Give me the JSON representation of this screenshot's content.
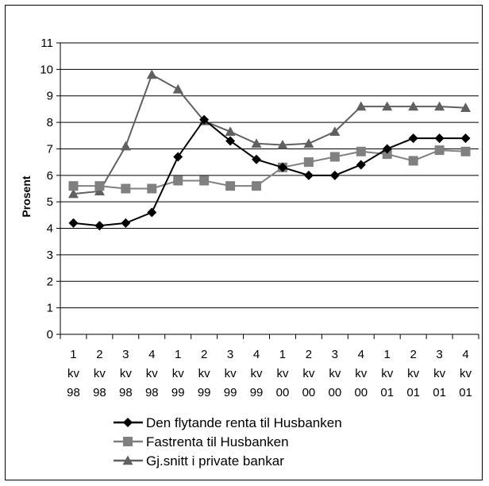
{
  "chart_data": {
    "type": "line",
    "title": "",
    "xlabel": "",
    "ylabel": "Prosent",
    "ylim": [
      0,
      11
    ],
    "yticks": [
      "0",
      "1",
      "2",
      "3",
      "4",
      "5",
      "6",
      "7",
      "8",
      "9",
      "10",
      "11"
    ],
    "grid": true,
    "legend_position": "bottom",
    "categories": [
      [
        "1",
        "kv",
        "98"
      ],
      [
        "2",
        "kv",
        "98"
      ],
      [
        "3",
        "kv",
        "98"
      ],
      [
        "4",
        "kv",
        "98"
      ],
      [
        "1",
        "kv",
        "99"
      ],
      [
        "2",
        "kv",
        "99"
      ],
      [
        "3",
        "kv",
        "99"
      ],
      [
        "4",
        "kv",
        "99"
      ],
      [
        "1",
        "kv",
        "00"
      ],
      [
        "2",
        "kv",
        "00"
      ],
      [
        "3",
        "kv",
        "00"
      ],
      [
        "4",
        "kv",
        "00"
      ],
      [
        "1",
        "kv",
        "01"
      ],
      [
        "2",
        "kv",
        "01"
      ],
      [
        "3",
        "kv",
        "01"
      ],
      [
        "4",
        "kv",
        "01"
      ]
    ],
    "series": [
      {
        "name": "Den flytande renta til Husbanken",
        "marker": "diamond",
        "color": "#000000",
        "values": [
          4.2,
          4.1,
          4.2,
          4.6,
          6.7,
          8.1,
          7.3,
          6.6,
          6.3,
          6.0,
          6.0,
          6.4,
          7.0,
          7.4,
          7.4,
          7.4
        ]
      },
      {
        "name": "Fastrenta til Husbanken",
        "marker": "square",
        "color": "#808080",
        "values": [
          5.6,
          5.6,
          5.5,
          5.5,
          5.8,
          5.8,
          5.6,
          5.6,
          6.3,
          6.5,
          6.7,
          6.9,
          6.8,
          6.55,
          6.95,
          6.9
        ]
      },
      {
        "name": "Gj.snitt i private bankar",
        "marker": "triangle",
        "color": "#606060",
        "values": [
          5.3,
          5.4,
          7.1,
          9.8,
          9.25,
          8.05,
          7.65,
          7.2,
          7.15,
          7.2,
          7.65,
          8.6,
          8.6,
          8.6,
          8.6,
          8.55
        ]
      }
    ]
  }
}
